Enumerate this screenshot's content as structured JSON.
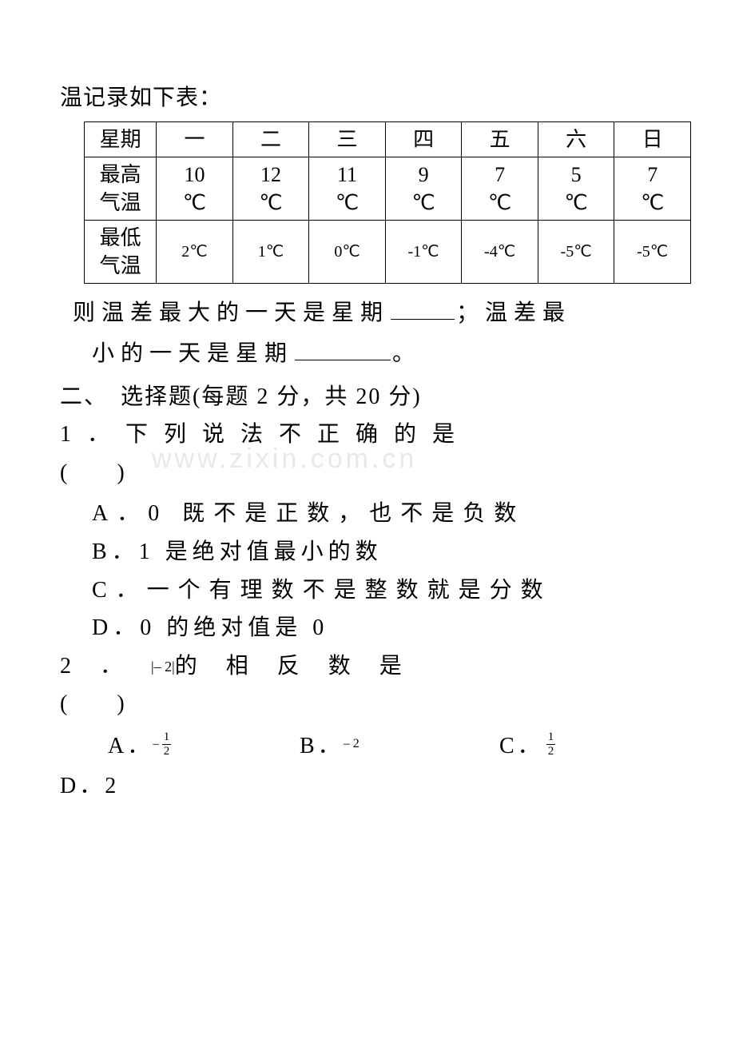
{
  "intro": "温记录如下表：",
  "watermark": "www.zixin.com.cn",
  "table": {
    "columns": [
      "星期",
      "一",
      "二",
      "三",
      "四",
      "五",
      "六",
      "日"
    ],
    "row_high_label": "最高\n气温",
    "row_high": [
      "10\n℃",
      "12\n℃",
      "11\n℃",
      "9\n℃",
      "7\n℃",
      "5\n℃",
      "7\n℃"
    ],
    "row_low_label": "最低\n气温",
    "row_low": [
      "2℃",
      "1℃",
      "0℃",
      "-1℃",
      "-4℃",
      "-5℃",
      "-5℃"
    ]
  },
  "followup": {
    "part1": "则温差最大的一天是星期",
    "sep": "；温差最",
    "part2": "小的一天是星期",
    "end": "。"
  },
  "section2": "二、　选择题(每题 2 分，共 20 分)",
  "q1": {
    "num": "1．",
    "stem": "下列说法不正确的是",
    "paren": "(　　)",
    "A": "A．0 既不是正数，也不是负数",
    "B": "B．1 是绝对值最小的数",
    "C": "C．一个有理数不是整数就是分数",
    "D": "D．0 的绝对值是 0"
  },
  "q2": {
    "num": "2",
    "dot": "．",
    "abs": "|– 2|",
    "tail": "的相反数是",
    "paren": "(　　)",
    "options": {
      "A_label": "A．",
      "A_neg": "–",
      "A_num": "1",
      "A_den": "2",
      "B_label": "B．",
      "B_val": "– 2",
      "C_label": "C．",
      "C_num": "1",
      "C_den": "2",
      "D_label": "D．2"
    }
  }
}
